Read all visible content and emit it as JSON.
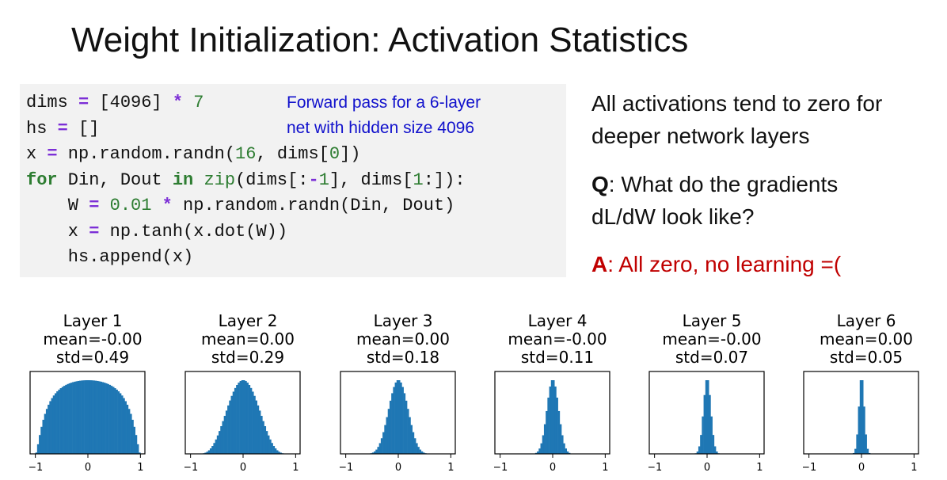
{
  "slide": {
    "title": "Weight Initialization: Activation Statistics",
    "code_lines": [
      [
        {
          "t": "dims "
        },
        {
          "t": "=",
          "c": "op"
        },
        {
          "t": " [4096] "
        },
        {
          "t": "*",
          "c": "op"
        },
        {
          "t": " "
        },
        {
          "t": "7",
          "c": "num"
        }
      ],
      [
        {
          "t": "hs "
        },
        {
          "t": "=",
          "c": "op"
        },
        {
          "t": " []"
        }
      ],
      [
        {
          "t": "x "
        },
        {
          "t": "=",
          "c": "op"
        },
        {
          "t": " np.random.randn("
        },
        {
          "t": "16",
          "c": "num"
        },
        {
          "t": ", dims["
        },
        {
          "t": "0",
          "c": "num"
        },
        {
          "t": "])"
        }
      ],
      [
        {
          "t": "for",
          "c": "kw"
        },
        {
          "t": " Din, Dout "
        },
        {
          "t": "in",
          "c": "kw"
        },
        {
          "t": " "
        },
        {
          "t": "zip",
          "c": "fn"
        },
        {
          "t": "(dims[:"
        },
        {
          "t": "-",
          "c": "op"
        },
        {
          "t": "1",
          "c": "num"
        },
        {
          "t": "], dims["
        },
        {
          "t": "1",
          "c": "num"
        },
        {
          "t": ":]):"
        }
      ],
      [
        {
          "t": "    W "
        },
        {
          "t": "=",
          "c": "op"
        },
        {
          "t": " "
        },
        {
          "t": "0.01",
          "c": "num"
        },
        {
          "t": " "
        },
        {
          "t": "*",
          "c": "op"
        },
        {
          "t": " np.random.randn(Din, Dout)"
        }
      ],
      [
        {
          "t": "    x "
        },
        {
          "t": "=",
          "c": "op"
        },
        {
          "t": " np.tanh(x.dot(W))"
        }
      ],
      [
        {
          "t": "    hs.append(x)"
        }
      ]
    ],
    "code_note_line1": "Forward pass for a 6-layer",
    "code_note_line2": "net with hidden size 4096",
    "side_line1": "All activations tend to zero for",
    "side_line2": "deeper network layers",
    "q_label": "Q",
    "q_text": ": What do the gradients",
    "q_text2": "dL/dW look like?",
    "a_label": "A",
    "a_text": ": All zero, no learning =("
  },
  "chart_data": {
    "type": "bar",
    "bar_color": "#1f77b4",
    "x_ticks": [
      "−1",
      "0",
      "1"
    ],
    "xlim": [
      -1.1,
      1.1
    ],
    "panels": [
      {
        "title": "Layer 1",
        "mean": "mean=-0.00",
        "std": "std=0.49",
        "std_value": 0.49
      },
      {
        "title": "Layer 2",
        "mean": "mean=0.00",
        "std": "std=0.29",
        "std_value": 0.29
      },
      {
        "title": "Layer 3",
        "mean": "mean=0.00",
        "std": "std=0.18",
        "std_value": 0.18
      },
      {
        "title": "Layer 4",
        "mean": "mean=-0.00",
        "std": "std=0.11",
        "std_value": 0.11
      },
      {
        "title": "Layer 5",
        "mean": "mean=-0.00",
        "std": "std=0.07",
        "std_value": 0.07
      },
      {
        "title": "Layer 6",
        "mean": "mean=0.00",
        "std": "std=0.05",
        "std_value": 0.05
      }
    ]
  }
}
